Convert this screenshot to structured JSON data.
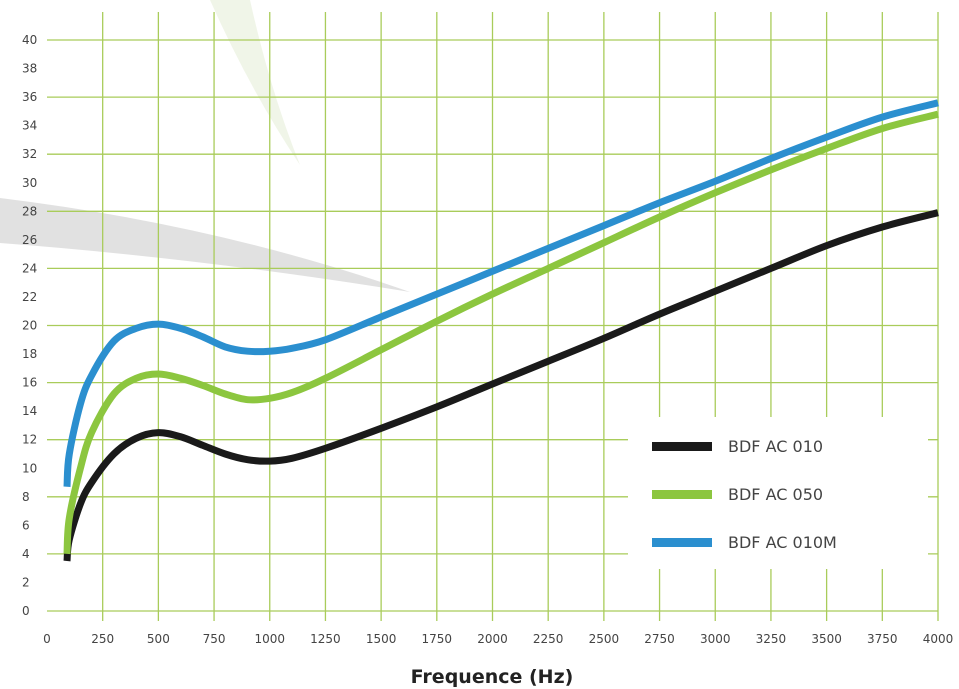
{
  "chart_data": {
    "type": "line",
    "title": "",
    "xlabel": "Frequence (Hz)",
    "ylabel": "",
    "xlim": [
      0,
      4000
    ],
    "ylim": [
      0,
      40
    ],
    "x_ticks": [
      0,
      250,
      500,
      750,
      1000,
      1250,
      1500,
      1750,
      2000,
      2250,
      2500,
      2750,
      3000,
      3250,
      3500,
      3750,
      4000
    ],
    "y_ticks": [
      0,
      2,
      4,
      6,
      8,
      10,
      12,
      14,
      16,
      18,
      20,
      22,
      24,
      26,
      28,
      30,
      32,
      34,
      36,
      38,
      40
    ],
    "grid": true,
    "legend_position": "bottom-right",
    "series": [
      {
        "name": "BDF AC 010",
        "color": "#1a1a1a",
        "x": [
          90,
          100,
          150,
          200,
          300,
          400,
          500,
          600,
          700,
          800,
          900,
          1000,
          1100,
          1250,
          1500,
          1750,
          2000,
          2250,
          2500,
          2750,
          3000,
          3250,
          3500,
          3750,
          4000
        ],
        "y": [
          3.5,
          5,
          7.5,
          9,
          11,
          12.1,
          12.5,
          12.2,
          11.6,
          11,
          10.6,
          10.5,
          10.7,
          11.4,
          12.8,
          14.3,
          15.9,
          17.5,
          19.1,
          20.8,
          22.4,
          24,
          25.6,
          26.9,
          27.9
        ]
      },
      {
        "name": "BDF AC 050",
        "color": "#8cc63f",
        "x": [
          90,
          100,
          150,
          200,
          300,
          400,
          500,
          600,
          700,
          800,
          900,
          1000,
          1100,
          1250,
          1500,
          1750,
          2000,
          2250,
          2500,
          2750,
          3000,
          3250,
          3500,
          3750,
          4000
        ],
        "y": [
          4,
          6.5,
          10,
          12.5,
          15.2,
          16.3,
          16.6,
          16.3,
          15.8,
          15.2,
          14.8,
          14.9,
          15.3,
          16.3,
          18.3,
          20.3,
          22.2,
          24,
          25.8,
          27.6,
          29.3,
          30.9,
          32.4,
          33.8,
          34.8
        ]
      },
      {
        "name": "BDF AC 010M",
        "color": "#2b8fcf",
        "x": [
          90,
          100,
          150,
          200,
          300,
          400,
          500,
          600,
          700,
          800,
          900,
          1000,
          1100,
          1250,
          1500,
          1750,
          2000,
          2250,
          2500,
          2750,
          3000,
          3250,
          3500,
          3750,
          4000
        ],
        "y": [
          8.7,
          11,
          14.5,
          16.5,
          18.9,
          19.8,
          20.1,
          19.8,
          19.2,
          18.5,
          18.2,
          18.2,
          18.4,
          19,
          20.6,
          22.2,
          23.8,
          25.4,
          27,
          28.6,
          30.1,
          31.7,
          33.2,
          34.6,
          35.6
        ]
      }
    ]
  }
}
